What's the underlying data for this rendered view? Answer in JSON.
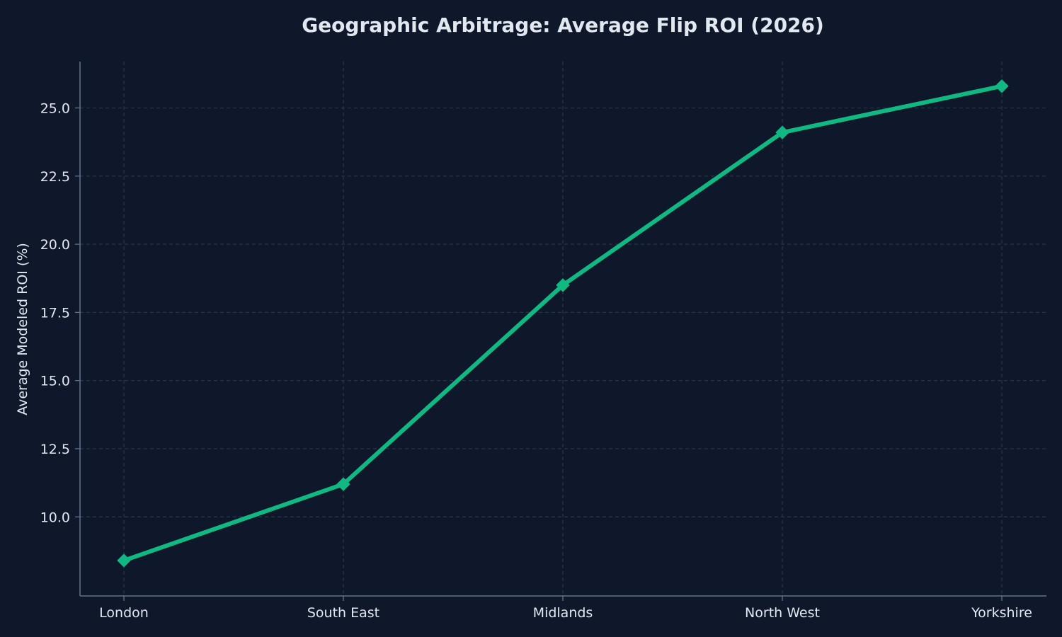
{
  "chart_data": {
    "type": "line",
    "title": "Geographic Arbitrage: Average Flip ROI (2026)",
    "xlabel": "",
    "ylabel": "Average Modeled ROI (%)",
    "categories": [
      "London",
      "South East",
      "Midlands",
      "North West",
      "Yorkshire"
    ],
    "series": [
      {
        "values": [
          8.4,
          11.2,
          18.5,
          24.1,
          25.8
        ],
        "color": "#10b981",
        "marker": "diamond"
      }
    ],
    "ylim": [
      7.1,
      26.7
    ],
    "yticks": [
      10.0,
      12.5,
      15.0,
      17.5,
      20.0,
      22.5,
      25.0
    ],
    "ytick_labels": [
      "10.0",
      "12.5",
      "15.0",
      "17.5",
      "20.0",
      "22.5",
      "25.0"
    ],
    "grid": true,
    "grid_style": "dashed",
    "legend": "none",
    "colors": {
      "background": "#0f172a",
      "text": "#e2e8f0",
      "axis": "#64748b",
      "grid": "#273449",
      "line": "#10b981"
    }
  }
}
